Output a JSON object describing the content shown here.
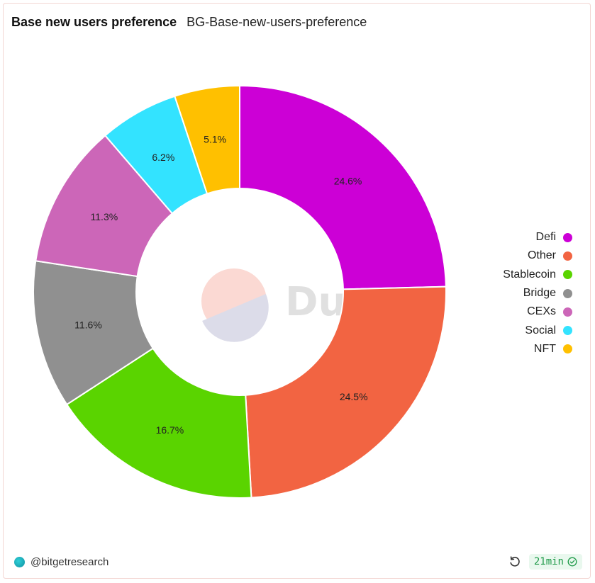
{
  "header": {
    "title": "Base new users preference",
    "subtitle": "BG-Base-new-users-preference"
  },
  "watermark": {
    "text": "Dune"
  },
  "chart_data": {
    "type": "pie",
    "donut": true,
    "categories": [
      "Defi",
      "Other",
      "Stablecoin",
      "Bridge",
      "CEXs",
      "Social",
      "NFT"
    ],
    "values": [
      24.6,
      24.5,
      16.7,
      11.6,
      11.3,
      6.2,
      5.1
    ],
    "value_labels": [
      "24.6%",
      "24.5%",
      "16.7%",
      "11.6%",
      "11.3%",
      "6.2%",
      "5.1%"
    ],
    "colors": [
      "#cc00d6",
      "#f26442",
      "#5ad400",
      "#909090",
      "#cc66b8",
      "#33e3ff",
      "#ffc000"
    ],
    "legend_position": "right",
    "title": "Base new users preference"
  },
  "legend": {
    "items": [
      {
        "label": "Defi",
        "color": "#cc00d6"
      },
      {
        "label": "Other",
        "color": "#f26442"
      },
      {
        "label": "Stablecoin",
        "color": "#5ad400"
      },
      {
        "label": "Bridge",
        "color": "#909090"
      },
      {
        "label": "CEXs",
        "color": "#cc66b8"
      },
      {
        "label": "Social",
        "color": "#33e3ff"
      },
      {
        "label": "NFT",
        "color": "#ffc000"
      }
    ]
  },
  "footer": {
    "author": "@bitgetresearch",
    "refresh_icon": "refresh-icon",
    "age": "21min",
    "status_icon": "check-circle-icon"
  }
}
